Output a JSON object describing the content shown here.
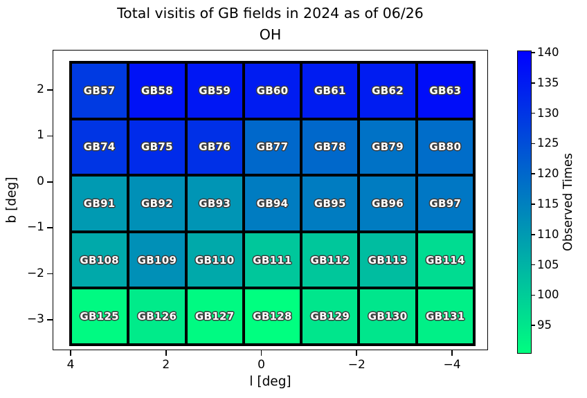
{
  "title": {
    "line1": "Total visitis of GB fields in 2024 as of 06/26",
    "line2": "OH"
  },
  "axes": {
    "xlabel": "l [deg]",
    "ylabel": "b [deg]",
    "x_ticks": [
      "4",
      "2",
      "0",
      "−2",
      "−4"
    ],
    "y_ticks": [
      "2",
      "1",
      "0",
      "−1",
      "−2",
      "−3"
    ]
  },
  "colorbar": {
    "label": "Observed Times",
    "ticks": [
      "140",
      "135",
      "130",
      "125",
      "120",
      "115",
      "110",
      "105",
      "100",
      "95"
    ],
    "color_low": "#00FA82",
    "color_high": "#0002FF"
  },
  "chart_data": {
    "type": "heatmap",
    "title": "Total visitis of GB fields in 2024 as of 06/26 OH",
    "xlabel": "l [deg]",
    "ylabel": "b [deg]",
    "colorbar_label": "Observed Times",
    "colormap": "winter_r",
    "vmin": 90,
    "vmax": 140.5,
    "x_tick_values": [
      4,
      2,
      0,
      -2,
      -4
    ],
    "y_tick_values": [
      2,
      1,
      0,
      -1,
      -2,
      -3
    ],
    "colorbar_tick_values": [
      140,
      135,
      130,
      125,
      120,
      115,
      110,
      105,
      100,
      95
    ],
    "rows": [
      {
        "cells": [
          {
            "label": "GB57",
            "value": 129
          },
          {
            "label": "GB58",
            "value": 137
          },
          {
            "label": "GB59",
            "value": 136
          },
          {
            "label": "GB60",
            "value": 135
          },
          {
            "label": "GB61",
            "value": 135
          },
          {
            "label": "GB62",
            "value": 135
          },
          {
            "label": "GB63",
            "value": 138
          }
        ]
      },
      {
        "cells": [
          {
            "label": "GB74",
            "value": 130
          },
          {
            "label": "GB75",
            "value": 132
          },
          {
            "label": "GB76",
            "value": 131
          },
          {
            "label": "GB77",
            "value": 120
          },
          {
            "label": "GB78",
            "value": 120
          },
          {
            "label": "GB79",
            "value": 118
          },
          {
            "label": "GB80",
            "value": 119
          }
        ]
      },
      {
        "cells": [
          {
            "label": "GB91",
            "value": 110
          },
          {
            "label": "GB92",
            "value": 112
          },
          {
            "label": "GB93",
            "value": 111
          },
          {
            "label": "GB94",
            "value": 116
          },
          {
            "label": "GB95",
            "value": 116
          },
          {
            "label": "GB96",
            "value": 116
          },
          {
            "label": "GB97",
            "value": 117
          }
        ]
      },
      {
        "cells": [
          {
            "label": "GB108",
            "value": 107
          },
          {
            "label": "GB109",
            "value": 112
          },
          {
            "label": "GB110",
            "value": 107
          },
          {
            "label": "GB111",
            "value": 101
          },
          {
            "label": "GB112",
            "value": 101
          },
          {
            "label": "GB113",
            "value": 103
          },
          {
            "label": "GB114",
            "value": 97
          }
        ]
      },
      {
        "cells": [
          {
            "label": "GB125",
            "value": 91
          },
          {
            "label": "GB126",
            "value": 94
          },
          {
            "label": "GB127",
            "value": 91
          },
          {
            "label": "GB128",
            "value": 90
          },
          {
            "label": "GB129",
            "value": 95
          },
          {
            "label": "GB130",
            "value": 95
          },
          {
            "label": "GB131",
            "value": 93
          }
        ]
      }
    ]
  }
}
